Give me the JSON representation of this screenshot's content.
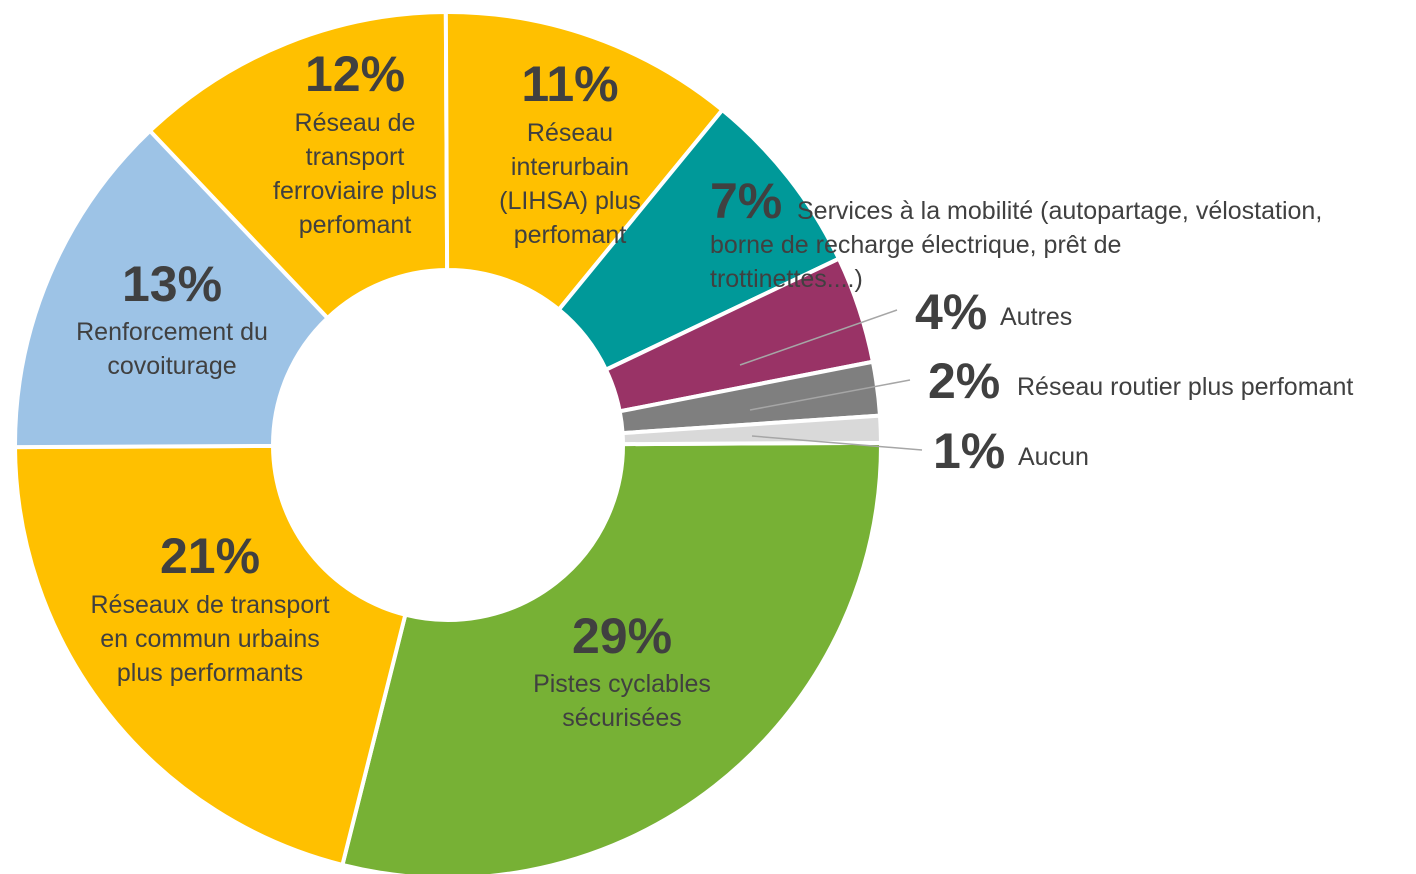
{
  "chart_data": {
    "type": "donut",
    "categories": [
      "Pistes cyclables sécurisées",
      "Réseaux de transport en commun urbains plus performants",
      "Renforcement du covoiturage",
      "Réseau de transport ferroviaire plus perfomant",
      "Réseau interurbain (LIHSA) plus perfomant",
      "Services à la mobilité  (autopartage, vélostation, borne de recharge électrique, prêt de trottinettes....)",
      "Autres",
      "Réseau routier plus  perfomant",
      "Aucun"
    ],
    "values": [
      29,
      21,
      13,
      12,
      11,
      7,
      4,
      2,
      1
    ],
    "value_labels": [
      "29%",
      "21%",
      "13%",
      "12%",
      "11%",
      "7%",
      "4%",
      "2%",
      "1%"
    ],
    "colors": [
      "#77b135",
      "#ffc000",
      "#9dc3e6",
      "#ffc000",
      "#ffc000",
      "#009999",
      "#993366",
      "#7f7f7f",
      "#d9d9d9"
    ]
  }
}
